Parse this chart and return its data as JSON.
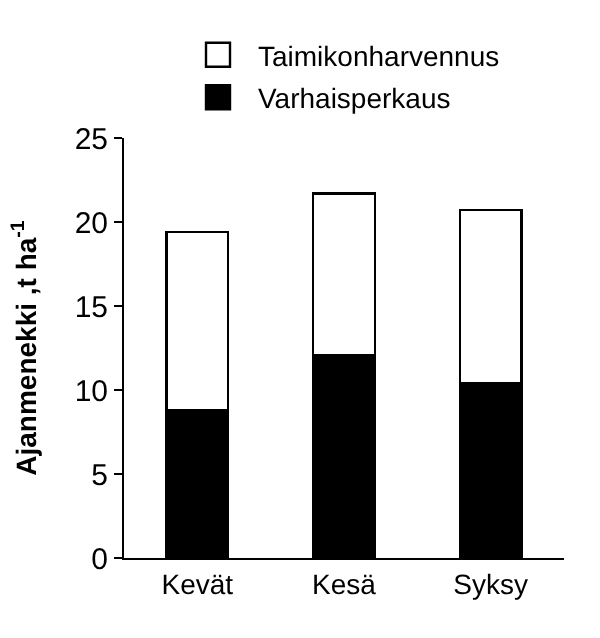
{
  "chart_data": {
    "type": "bar",
    "stacked": true,
    "ylabel": "Ajanmenekki ,t ha$^{-1}$",
    "categories": [
      "Kevät",
      "Kesä",
      "Syksy"
    ],
    "series": [
      {
        "name": "Varhaisperkaus",
        "color": "#000000",
        "values": [
          8.8,
          12.1,
          10.4
        ]
      },
      {
        "name": "Taimikonharvennus",
        "color": "#ffffff",
        "values": [
          10.6,
          9.6,
          10.3
        ]
      }
    ],
    "ylim": [
      0,
      25
    ],
    "yticks": [
      0,
      5,
      10,
      15,
      20,
      25
    ],
    "legend": "top"
  }
}
